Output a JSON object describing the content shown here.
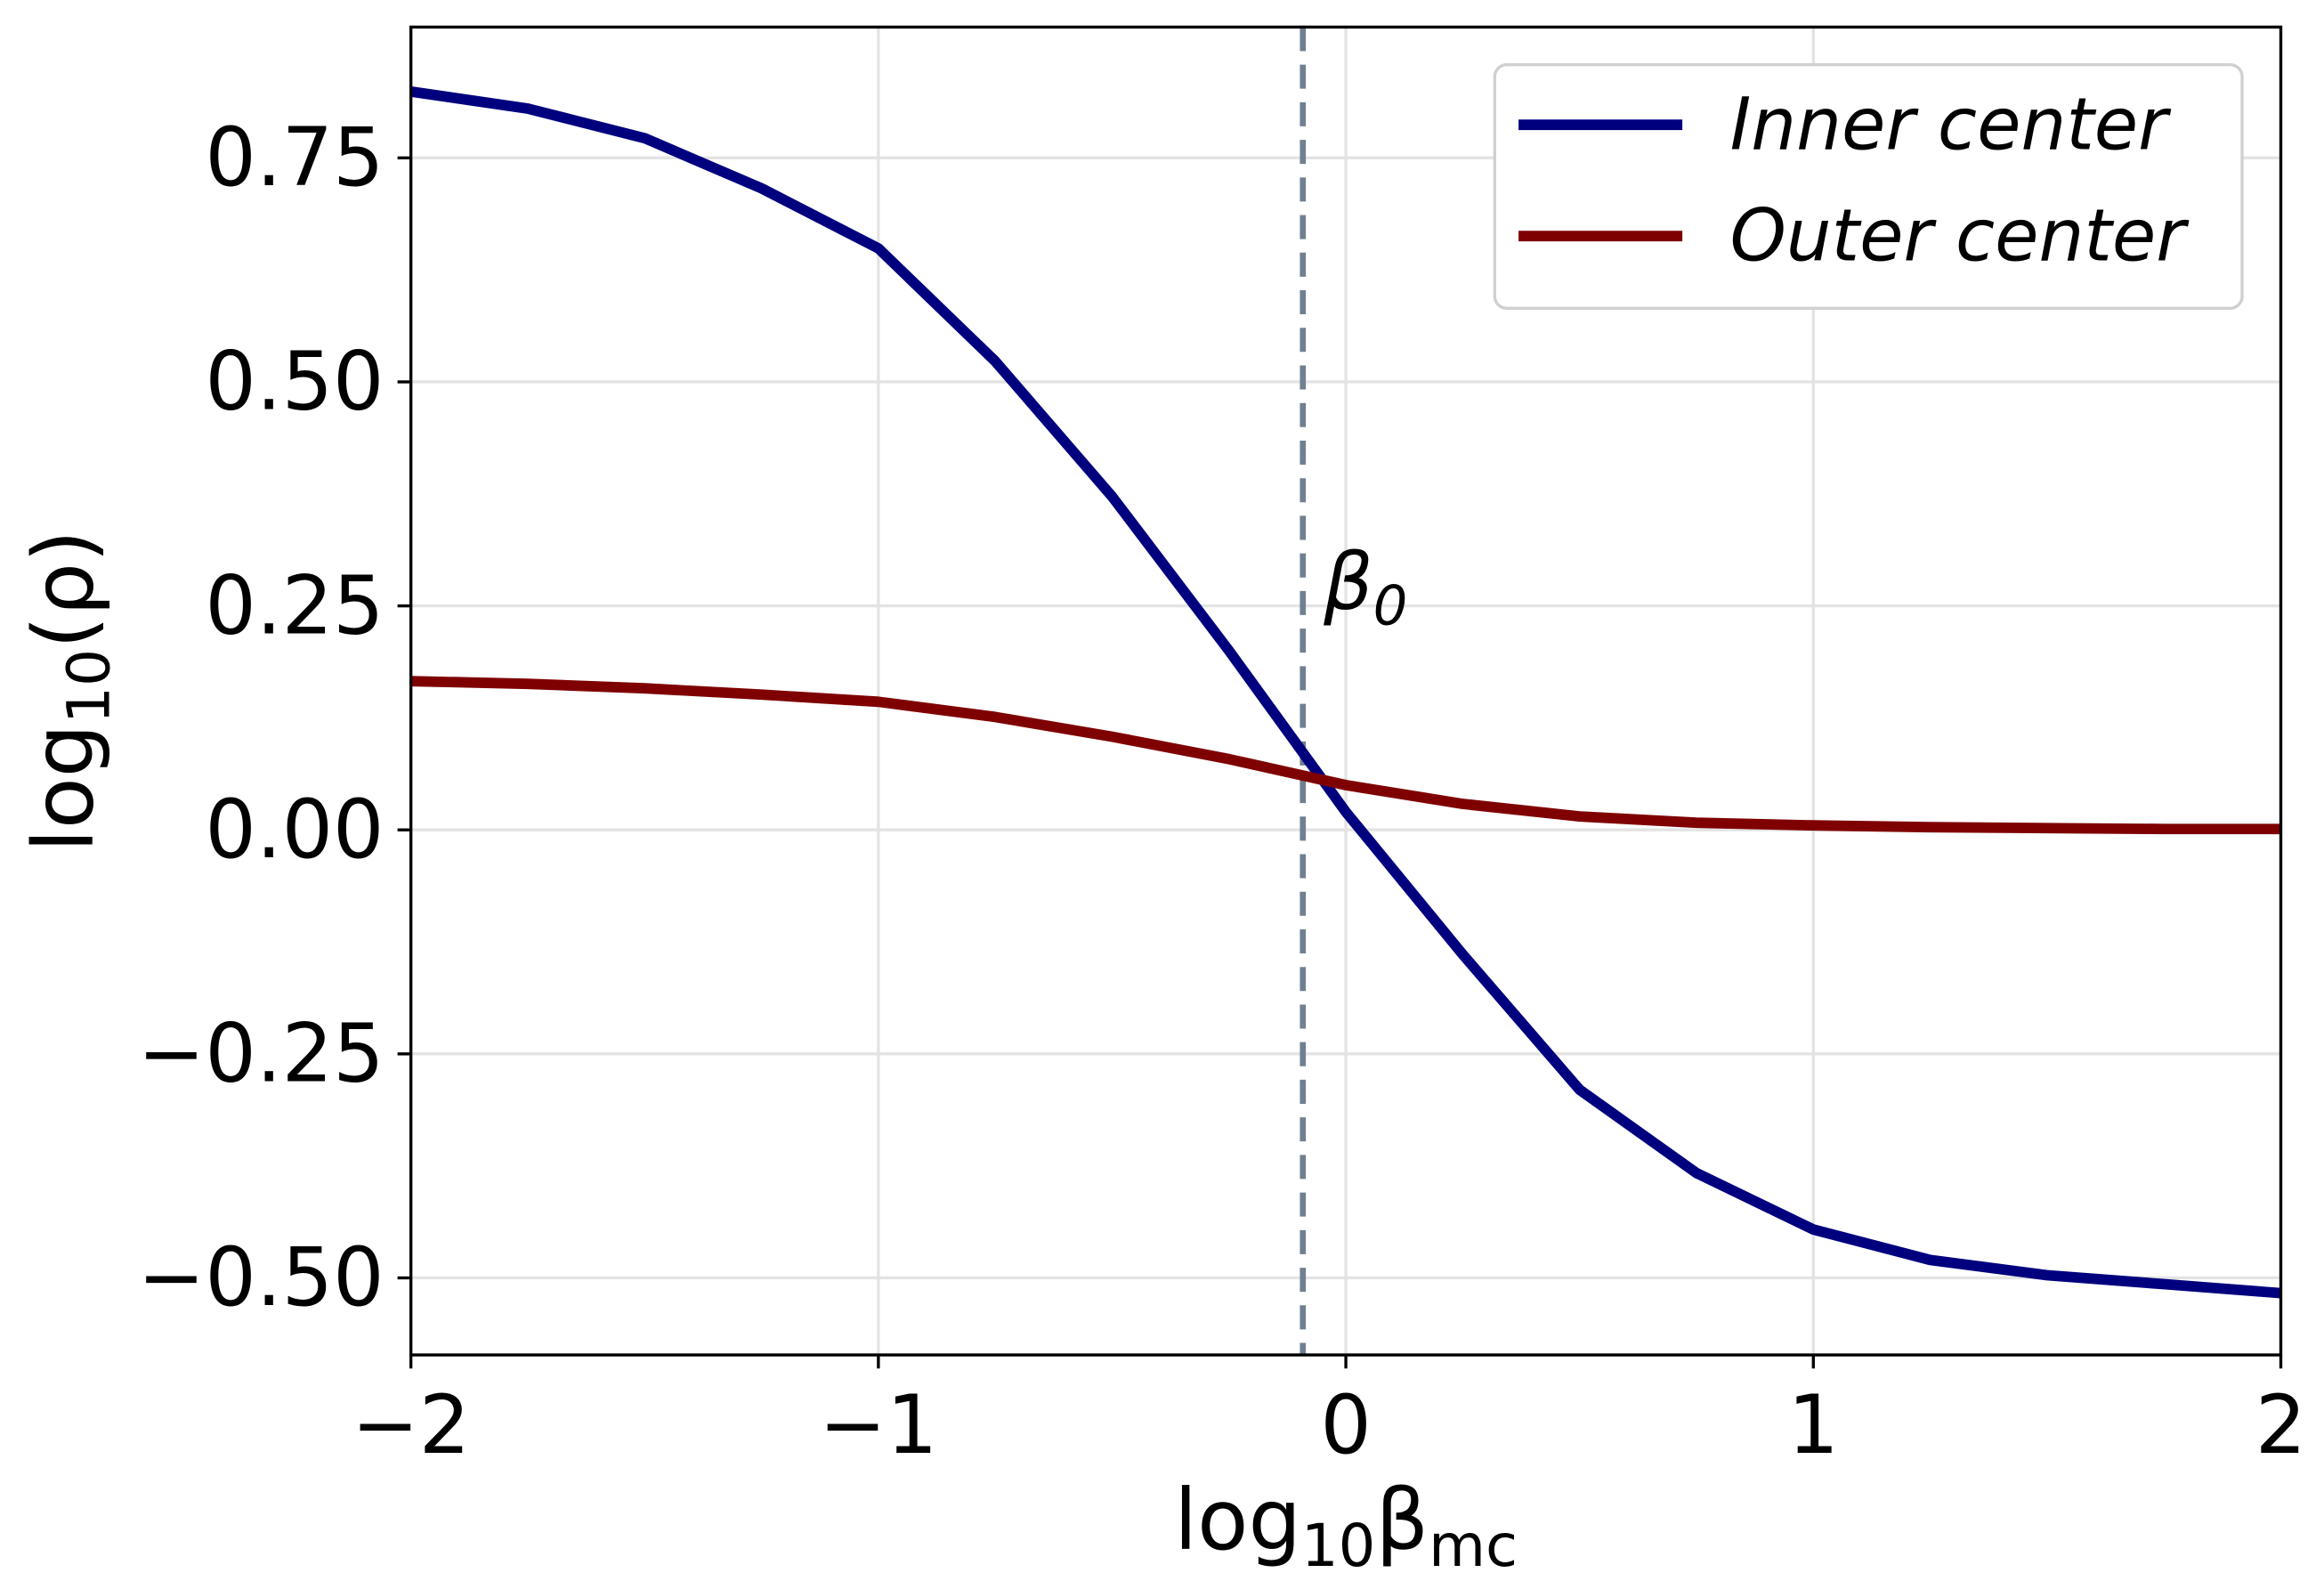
{
  "chart_data": {
    "type": "line",
    "xlabel": [
      "log",
      "10",
      "β",
      "mc"
    ],
    "ylabel": [
      "log",
      "10",
      "(ρ)"
    ],
    "x": [
      -2,
      -1.75,
      -1.5,
      -1.25,
      -1,
      -0.75,
      -0.5,
      -0.25,
      0,
      0.25,
      0.5,
      0.75,
      1,
      1.25,
      1.5,
      1.75,
      2
    ],
    "series": [
      {
        "name": "Inner center",
        "color": "#00007f",
        "values": [
          0.824,
          0.805,
          0.772,
          0.716,
          0.649,
          0.523,
          0.372,
          0.2,
          0.02,
          -0.139,
          -0.29,
          -0.383,
          -0.446,
          -0.48,
          -0.497,
          -0.507,
          -0.517
        ]
      },
      {
        "name": "Outer center",
        "color": "#7f0000",
        "values": [
          0.166,
          0.163,
          0.158,
          0.151,
          0.143,
          0.126,
          0.104,
          0.079,
          0.05,
          0.029,
          0.015,
          0.008,
          0.005,
          0.003,
          0.002,
          0.001,
          0.001
        ]
      }
    ],
    "vline": {
      "x": -0.092,
      "color": "#708090",
      "label": [
        "β",
        "0"
      ]
    },
    "xlim": [
      -2,
      2
    ],
    "xticks": [
      {
        "value": -2,
        "label": "−2"
      },
      {
        "value": -1,
        "label": "−1"
      },
      0,
      1,
      2
    ],
    "ylim": [
      -0.586,
      0.896
    ],
    "yticks": [
      {
        "value": -0.5,
        "label": "−0.50"
      },
      {
        "value": -0.25,
        "label": "−0.25"
      },
      {
        "value": 0,
        "label": "0.00"
      },
      0.25,
      {
        "value": 0.5,
        "label": "0.50"
      },
      0.75
    ],
    "grid": true,
    "legend": "upper right"
  }
}
